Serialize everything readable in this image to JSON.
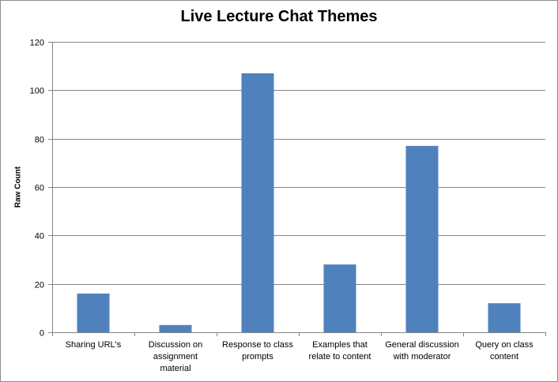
{
  "chart_data": {
    "type": "bar",
    "title": "Live Lecture Chat Themes",
    "xlabel": "",
    "ylabel": "Raw Count",
    "categories": [
      [
        "Sharing URL's"
      ],
      [
        "Discussion on",
        "assignment",
        "material"
      ],
      [
        "Response to class",
        "prompts"
      ],
      [
        "Examples that",
        "relate to content"
      ],
      [
        "General discussion",
        "with moderator"
      ],
      [
        "Query on class",
        "content"
      ]
    ],
    "values": [
      16,
      3,
      107,
      28,
      77,
      12
    ],
    "ylim": [
      0,
      120
    ],
    "yticks": [
      0,
      20,
      40,
      60,
      80,
      100,
      120
    ],
    "grid": true,
    "legend": "none",
    "colors": {
      "bar": "#4f81bd",
      "grid": "#868686",
      "axis": "#868686"
    }
  }
}
